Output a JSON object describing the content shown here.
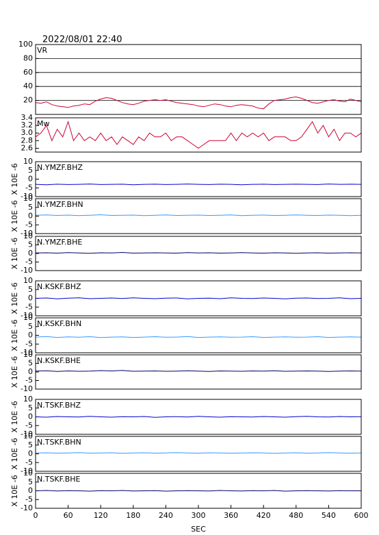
{
  "chart_data": [
    {
      "type": "line",
      "title": "2022/08/01 22:40",
      "label": "VR",
      "color": "#cc0033",
      "grid": true,
      "xlim": [
        0,
        600
      ],
      "ylim": [
        0,
        100
      ],
      "yticks": [
        20,
        40,
        60,
        80,
        100
      ],
      "x": [
        0,
        10,
        20,
        30,
        40,
        50,
        60,
        70,
        80,
        90,
        100,
        110,
        120,
        130,
        140,
        150,
        160,
        170,
        180,
        190,
        200,
        210,
        220,
        230,
        240,
        250,
        260,
        270,
        280,
        290,
        300,
        310,
        320,
        330,
        340,
        350,
        360,
        370,
        380,
        390,
        400,
        410,
        420,
        430,
        440,
        450,
        460,
        470,
        480,
        490,
        500,
        510,
        520,
        530,
        540,
        550,
        560,
        570,
        580,
        590,
        600
      ],
      "values": [
        17,
        16,
        18,
        14,
        12,
        11,
        10,
        12,
        13,
        15,
        14,
        19,
        22,
        24,
        23,
        20,
        17,
        15,
        14,
        16,
        19,
        20,
        21,
        20,
        21,
        19,
        17,
        16,
        15,
        14,
        12,
        11,
        13,
        15,
        14,
        12,
        11,
        13,
        14,
        13,
        12,
        9,
        8,
        15,
        20,
        21,
        22,
        24,
        25,
        23,
        20,
        17,
        16,
        18,
        20,
        21,
        19,
        18,
        22,
        20,
        18
      ]
    },
    {
      "type": "line",
      "label": "Mw",
      "color": "#cc0033",
      "grid": false,
      "xlim": [
        0,
        600
      ],
      "ylim": [
        2.5,
        3.4
      ],
      "yticks": [
        2.6,
        2.8,
        {
          "value": 3.0,
          "label": "3.0"
        },
        3.2,
        3.4
      ],
      "x": [
        0,
        10,
        20,
        30,
        40,
        50,
        60,
        70,
        80,
        90,
        100,
        110,
        120,
        130,
        140,
        150,
        160,
        170,
        180,
        190,
        200,
        210,
        220,
        230,
        240,
        250,
        260,
        270,
        280,
        290,
        300,
        310,
        320,
        330,
        340,
        350,
        360,
        370,
        380,
        390,
        400,
        410,
        420,
        430,
        440,
        450,
        460,
        470,
        480,
        490,
        500,
        510,
        520,
        530,
        540,
        550,
        560,
        570,
        580,
        590,
        600
      ],
      "values": [
        2.9,
        3.0,
        3.2,
        2.8,
        3.1,
        2.9,
        3.3,
        2.8,
        3.0,
        2.8,
        2.9,
        2.8,
        3.0,
        2.8,
        2.9,
        2.7,
        2.9,
        2.8,
        2.7,
        2.9,
        2.8,
        3.0,
        2.9,
        2.9,
        3.0,
        2.8,
        2.9,
        2.9,
        2.8,
        2.7,
        2.6,
        2.7,
        2.8,
        2.8,
        2.8,
        2.8,
        3.0,
        2.8,
        3.0,
        2.9,
        3.0,
        2.9,
        3.0,
        2.8,
        2.9,
        2.9,
        2.9,
        2.8,
        2.8,
        2.9,
        3.1,
        3.3,
        3.0,
        3.2,
        2.9,
        3.1,
        2.8,
        3.0,
        3.0,
        2.9,
        3.0
      ]
    },
    {
      "type": "line",
      "label": "N.YMZF.BHZ",
      "ylabel": "X 10E -6",
      "color": "#0000cc",
      "grid": false,
      "xlim": [
        0,
        600
      ],
      "ylim": [
        -10,
        10
      ],
      "yticks": [
        -10,
        -5,
        0,
        5,
        10
      ],
      "x": [
        0,
        20,
        40,
        60,
        80,
        100,
        120,
        140,
        160,
        180,
        200,
        220,
        240,
        260,
        280,
        300,
        320,
        340,
        360,
        380,
        400,
        420,
        440,
        460,
        480,
        500,
        520,
        540,
        560,
        580,
        600
      ],
      "values": [
        -3.0,
        -3.2,
        -2.9,
        -3.1,
        -3.0,
        -2.8,
        -3.1,
        -3.0,
        -2.9,
        -3.2,
        -3.0,
        -2.9,
        -3.1,
        -3.0,
        -2.8,
        -3.0,
        -3.1,
        -2.9,
        -3.0,
        -3.2,
        -3.0,
        -2.9,
        -3.1,
        -3.0,
        -2.9,
        -3.0,
        -3.1,
        -2.8,
        -3.0,
        -2.9,
        -3.0
      ]
    },
    {
      "type": "line",
      "label": "N.YMZF.BHN",
      "ylabel": "X 10E -6",
      "color": "#3399ff",
      "grid": false,
      "xlim": [
        0,
        600
      ],
      "ylim": [
        -10,
        10
      ],
      "yticks": [
        -10,
        -5,
        0,
        5,
        10
      ],
      "x": [
        0,
        20,
        40,
        60,
        80,
        100,
        120,
        140,
        160,
        180,
        200,
        220,
        240,
        260,
        280,
        300,
        320,
        340,
        360,
        380,
        400,
        420,
        440,
        460,
        480,
        500,
        520,
        540,
        560,
        580,
        600
      ],
      "values": [
        0.5,
        0.7,
        0.4,
        0.6,
        0.3,
        0.5,
        0.8,
        0.4,
        0.5,
        0.6,
        0.3,
        0.5,
        0.7,
        0.4,
        0.5,
        0.6,
        0.4,
        0.5,
        0.7,
        0.3,
        0.5,
        0.6,
        0.4,
        0.5,
        0.7,
        0.5,
        0.4,
        0.6,
        0.5,
        0.3,
        0.5
      ]
    },
    {
      "type": "line",
      "label": "N.YMZF.BHE",
      "ylabel": "X 10E -6",
      "color": "#000066",
      "grid": false,
      "xlim": [
        0,
        600
      ],
      "ylim": [
        -10,
        10
      ],
      "yticks": [
        -10,
        -5,
        0,
        5,
        10
      ],
      "x": [
        0,
        20,
        40,
        60,
        80,
        100,
        120,
        140,
        160,
        180,
        200,
        220,
        240,
        260,
        280,
        300,
        320,
        340,
        360,
        380,
        400,
        420,
        440,
        460,
        480,
        500,
        520,
        540,
        560,
        580,
        600
      ],
      "values": [
        0.3,
        0.4,
        0.2,
        0.5,
        0.3,
        0.1,
        0.4,
        0.3,
        0.6,
        0.2,
        0.3,
        0.4,
        0.3,
        0.2,
        0.5,
        0.3,
        0.4,
        0.2,
        0.3,
        0.5,
        0.3,
        0.2,
        0.4,
        0.3,
        0.1,
        0.3,
        0.4,
        0.2,
        0.3,
        0.4,
        0.3
      ]
    },
    {
      "type": "line",
      "label": "N.KSKF.BHZ",
      "ylabel": "X 10E -6",
      "color": "#0000cc",
      "grid": false,
      "xlim": [
        0,
        600
      ],
      "ylim": [
        -10,
        10
      ],
      "yticks": [
        -10,
        -5,
        0,
        5,
        10
      ],
      "x": [
        0,
        20,
        40,
        60,
        80,
        100,
        120,
        140,
        160,
        180,
        200,
        220,
        240,
        260,
        280,
        300,
        320,
        340,
        360,
        380,
        400,
        420,
        440,
        460,
        480,
        500,
        520,
        540,
        560,
        580,
        600
      ],
      "values": [
        0.0,
        0.2,
        -0.3,
        0.1,
        0.3,
        -0.2,
        0.0,
        0.2,
        -0.1,
        0.3,
        0.0,
        -0.2,
        0.1,
        0.2,
        -0.3,
        0.0,
        0.1,
        -0.2,
        0.3,
        0.0,
        -0.1,
        0.2,
        0.0,
        -0.3,
        0.1,
        0.2,
        -0.1,
        0.0,
        0.3,
        -0.2,
        0.0
      ]
    },
    {
      "type": "line",
      "label": "N.KSKF.BHN",
      "ylabel": "X 10E -6",
      "color": "#3399ff",
      "grid": false,
      "xlim": [
        0,
        600
      ],
      "ylim": [
        -10,
        10
      ],
      "yticks": [
        -10,
        -5,
        0,
        5,
        10
      ],
      "x": [
        0,
        20,
        40,
        60,
        80,
        100,
        120,
        140,
        160,
        180,
        200,
        220,
        240,
        260,
        280,
        300,
        320,
        340,
        360,
        380,
        400,
        420,
        440,
        460,
        480,
        500,
        520,
        540,
        560,
        580,
        600
      ],
      "values": [
        -1.0,
        -0.7,
        -1.2,
        -0.9,
        -1.1,
        -0.8,
        -1.3,
        -1.0,
        -0.9,
        -1.2,
        -1.0,
        -0.8,
        -1.1,
        -1.0,
        -0.7,
        -1.2,
        -1.0,
        -0.9,
        -1.1,
        -1.0,
        -0.8,
        -1.2,
        -1.0,
        -0.9,
        -1.1,
        -1.0,
        -0.8,
        -1.2,
        -1.0,
        -0.9,
        -1.0
      ]
    },
    {
      "type": "line",
      "label": "N.KSKF.BHE",
      "ylabel": "X 10E -6",
      "color": "#000066",
      "grid": false,
      "xlim": [
        0,
        600
      ],
      "ylim": [
        -10,
        10
      ],
      "yticks": [
        -10,
        -5,
        0,
        5,
        10
      ],
      "x": [
        0,
        20,
        40,
        60,
        80,
        100,
        120,
        140,
        160,
        180,
        200,
        220,
        240,
        260,
        280,
        300,
        320,
        340,
        360,
        380,
        400,
        420,
        440,
        460,
        480,
        500,
        520,
        540,
        560,
        580,
        600
      ],
      "values": [
        0.5,
        0.7,
        0.3,
        0.6,
        0.4,
        0.5,
        0.8,
        0.6,
        0.9,
        0.4,
        0.5,
        0.6,
        0.4,
        0.5,
        0.7,
        0.5,
        0.3,
        0.6,
        0.5,
        0.4,
        0.6,
        0.5,
        0.7,
        0.4,
        0.5,
        0.6,
        0.5,
        0.3,
        0.5,
        0.6,
        0.5
      ]
    },
    {
      "type": "line",
      "label": "N.TSKF.BHZ",
      "ylabel": "X 10E -6",
      "color": "#0000cc",
      "grid": false,
      "xlim": [
        0,
        600
      ],
      "ylim": [
        -10,
        10
      ],
      "yticks": [
        -10,
        -5,
        0,
        5,
        10
      ],
      "x": [
        0,
        20,
        40,
        60,
        80,
        100,
        120,
        140,
        160,
        180,
        200,
        220,
        240,
        260,
        280,
        300,
        320,
        340,
        360,
        380,
        400,
        420,
        440,
        460,
        480,
        500,
        520,
        540,
        560,
        580,
        600
      ],
      "values": [
        0.0,
        -0.2,
        0.2,
        0.0,
        -0.1,
        0.3,
        0.0,
        -0.2,
        0.1,
        0.0,
        0.2,
        -0.3,
        0.0,
        0.1,
        -0.1,
        0.3,
        0.0,
        -0.2,
        0.1,
        0.0,
        -0.1,
        0.2,
        0.0,
        -0.2,
        0.1,
        0.3,
        0.0,
        -0.1,
        0.2,
        0.0,
        0.1
      ]
    },
    {
      "type": "line",
      "label": "N.TSKF.BHN",
      "ylabel": "X 10E -6",
      "color": "#3399ff",
      "grid": false,
      "xlim": [
        0,
        600
      ],
      "ylim": [
        -10,
        10
      ],
      "yticks": [
        -10,
        -5,
        0,
        5,
        10
      ],
      "x": [
        0,
        20,
        40,
        60,
        80,
        100,
        120,
        140,
        160,
        180,
        200,
        220,
        240,
        260,
        280,
        300,
        320,
        340,
        360,
        380,
        400,
        420,
        440,
        460,
        480,
        500,
        520,
        540,
        560,
        580,
        600
      ],
      "values": [
        0.5,
        0.6,
        0.4,
        0.5,
        0.7,
        0.4,
        0.5,
        0.6,
        0.3,
        0.5,
        0.6,
        0.4,
        0.5,
        0.7,
        0.5,
        0.4,
        0.6,
        0.5,
        0.4,
        0.5,
        0.6,
        0.5,
        0.3,
        0.5,
        0.6,
        0.4,
        0.5,
        0.7,
        0.5,
        0.4,
        0.5
      ]
    },
    {
      "type": "line",
      "label": "N.TSKF.BHE",
      "ylabel": "X 10E -6",
      "color": "#000066",
      "grid": false,
      "xlim": [
        0,
        600
      ],
      "ylim": [
        -10,
        10
      ],
      "yticks": [
        -10,
        -5,
        0,
        5,
        10
      ],
      "xlabel": "SEC",
      "xticks": [
        0,
        60,
        120,
        180,
        240,
        300,
        360,
        420,
        480,
        540,
        600
      ],
      "x": [
        0,
        20,
        40,
        60,
        80,
        100,
        120,
        140,
        160,
        180,
        200,
        220,
        240,
        260,
        280,
        300,
        320,
        340,
        360,
        380,
        400,
        420,
        440,
        460,
        480,
        500,
        520,
        540,
        560,
        580,
        600
      ],
      "values": [
        0.0,
        0.2,
        -0.1,
        0.1,
        0.0,
        -0.2,
        0.1,
        0.0,
        0.2,
        -0.1,
        0.0,
        0.1,
        -0.2,
        0.0,
        0.1,
        0.0,
        -0.1,
        0.2,
        0.0,
        -0.1,
        0.1,
        0.0,
        0.2,
        -0.2,
        0.0,
        0.1,
        0.0,
        -0.1,
        0.1,
        0.0,
        0.0
      ]
    }
  ]
}
